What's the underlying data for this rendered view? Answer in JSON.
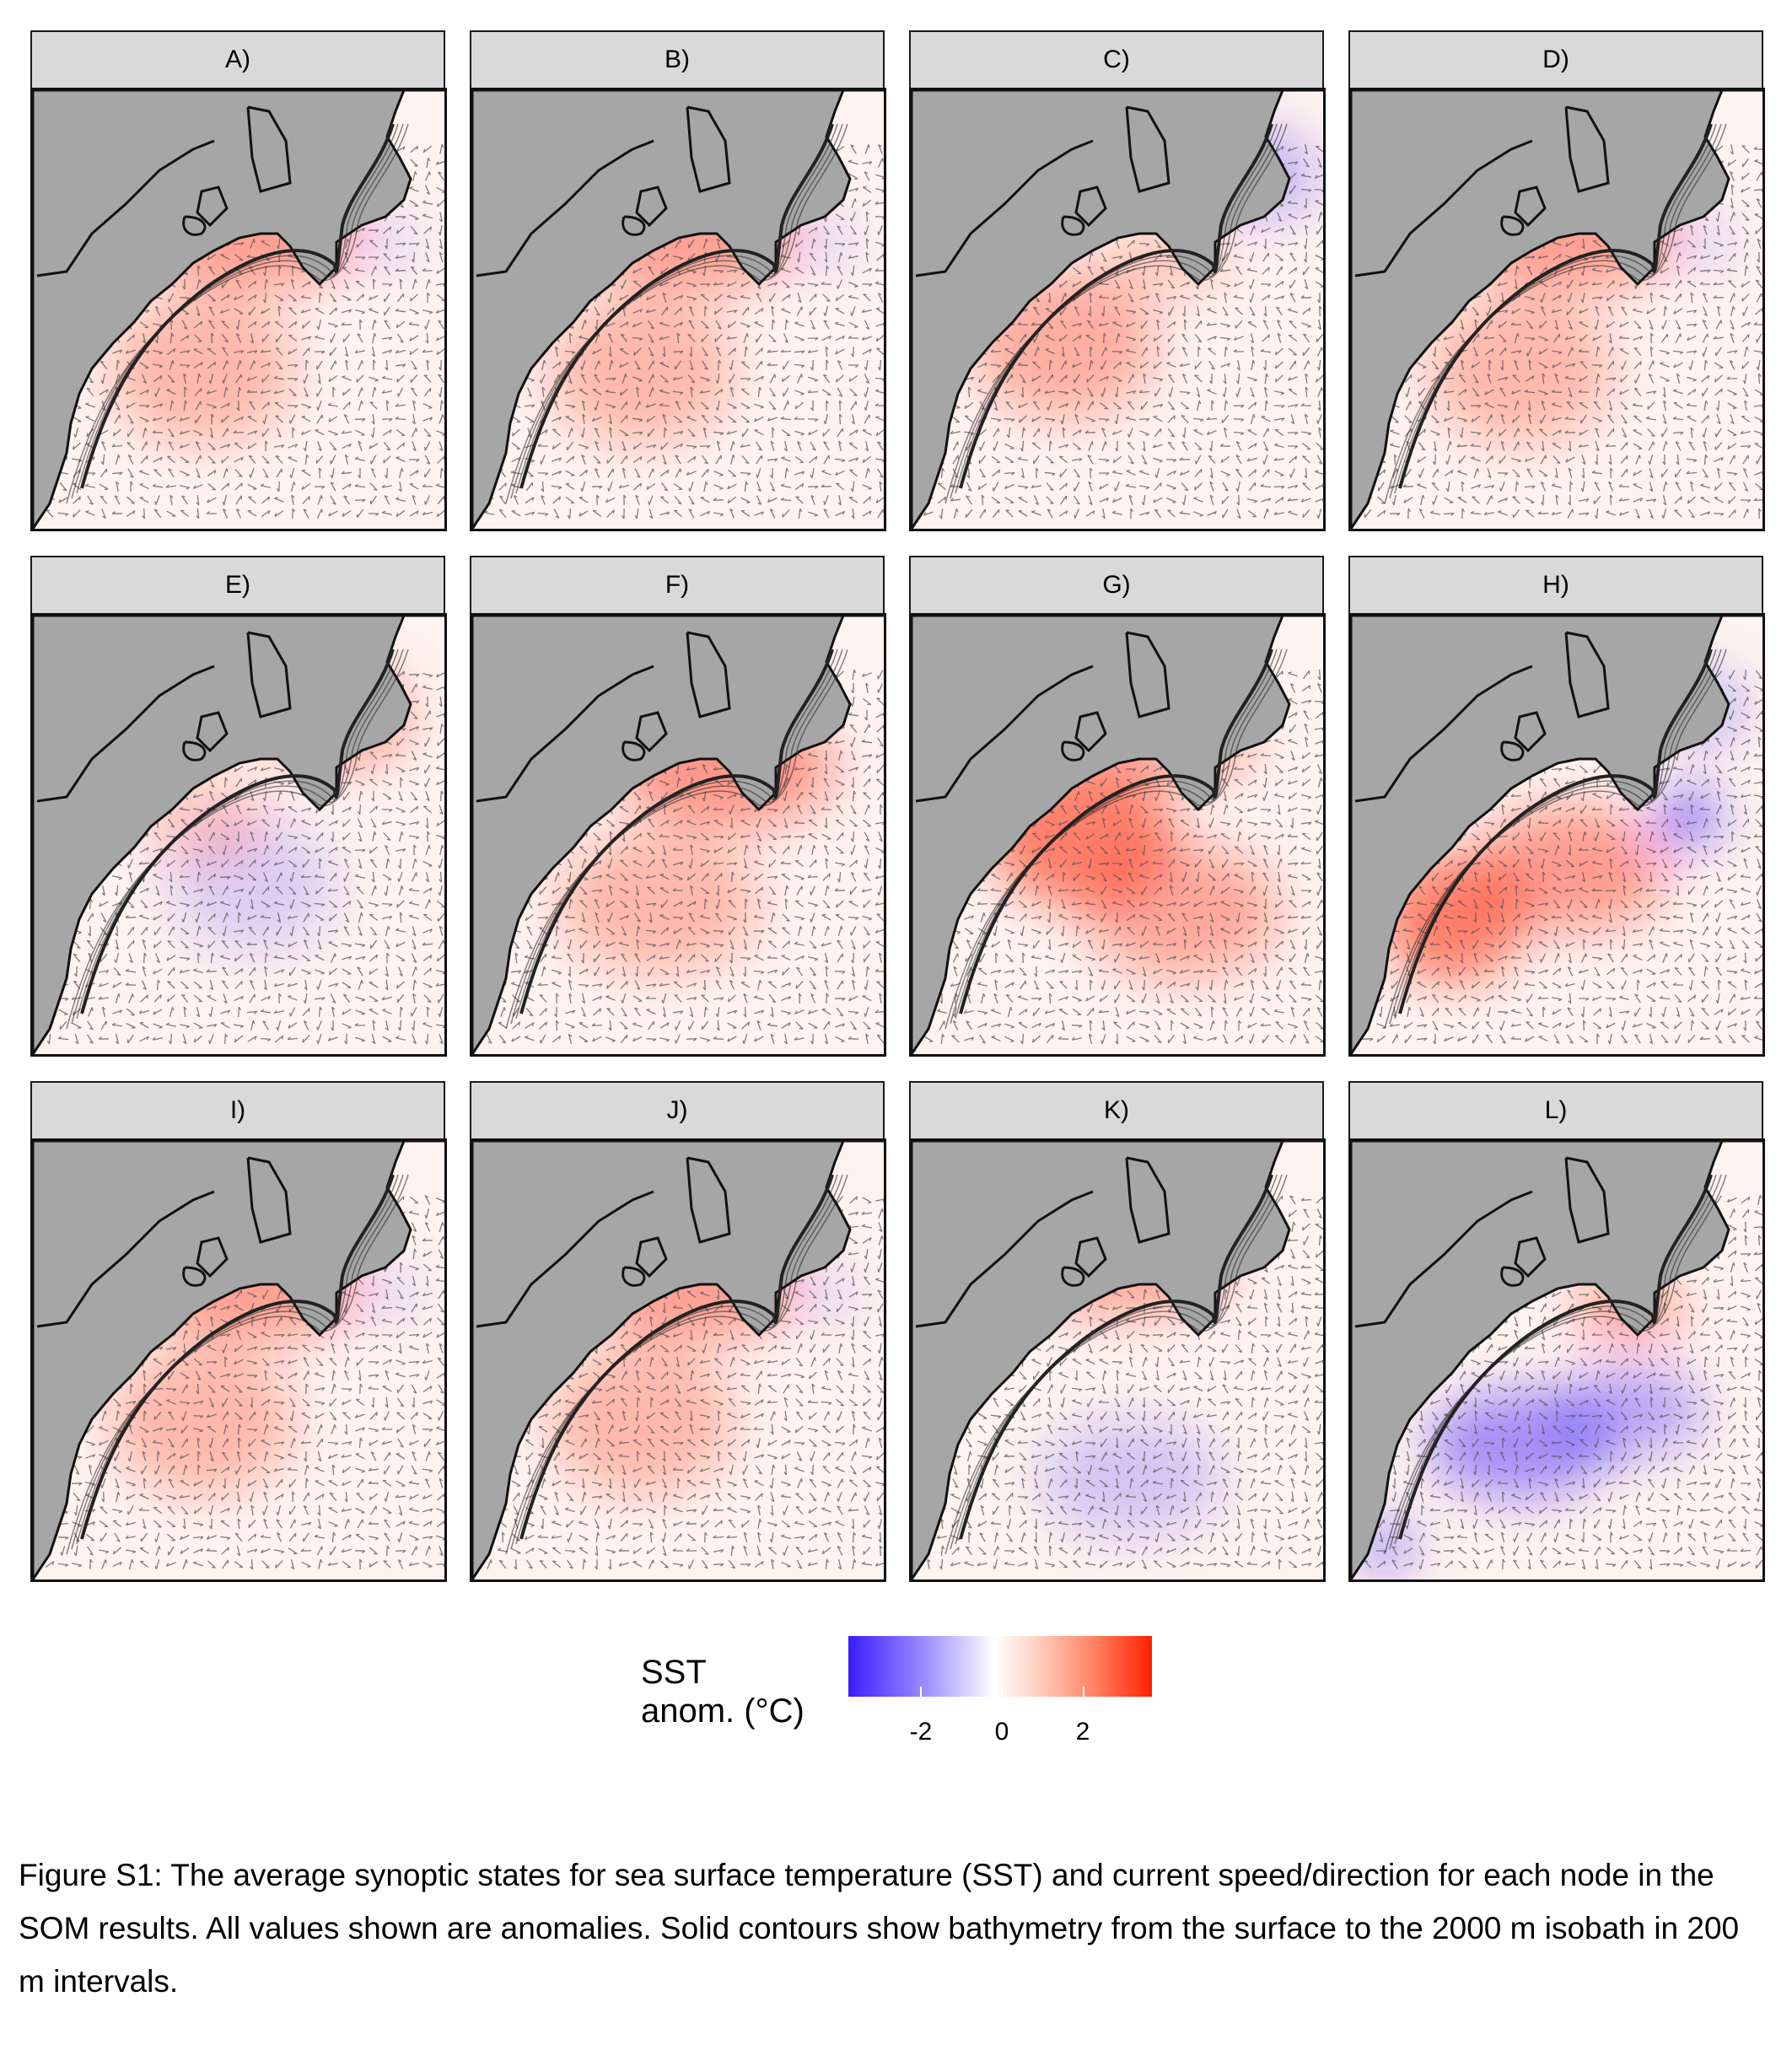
{
  "figure": {
    "panels": [
      {
        "label": "A)",
        "anom": "warm_shelf"
      },
      {
        "label": "B)",
        "anom": "warm_shelf"
      },
      {
        "label": "C)",
        "anom": "cool_ne"
      },
      {
        "label": "D)",
        "anom": "warm_shelf"
      },
      {
        "label": "E)",
        "anom": "cool_offshore"
      },
      {
        "label": "F)",
        "anom": "warm_broad"
      },
      {
        "label": "G)",
        "anom": "warm_strong"
      },
      {
        "label": "H)",
        "anom": "warm_sw_cold_ne"
      },
      {
        "label": "I)",
        "anom": "warm_shelf"
      },
      {
        "label": "J)",
        "anom": "warm_shelf"
      },
      {
        "label": "K)",
        "anom": "cool_south"
      },
      {
        "label": "L)",
        "anom": "cool_offshore_strong"
      }
    ]
  },
  "legend": {
    "title_line1": "SST",
    "title_line2": "anom. (°C)",
    "ticks": [
      "-2",
      "0",
      "2"
    ],
    "colors": {
      "cold": "#3a1dff",
      "neutral": "#ffffff",
      "warm": "#ff1e00",
      "land": "#a6a6a6",
      "vector": "#555555"
    }
  },
  "caption": "Figure S1: The average synoptic states for sea surface temperature (SST) and current speed/direction for each node in the SOM results.  All values shown are anomalies.  Solid contours show bathymetry from the surface to the 2000 m isobath in 200 m intervals."
}
